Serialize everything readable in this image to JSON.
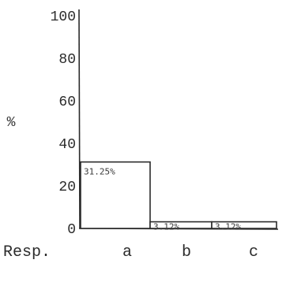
{
  "chart_data": {
    "type": "bar",
    "ylabel": "%",
    "xlabel": "Resp.",
    "ylim": [
      0,
      100
    ],
    "y_ticks": [
      "100",
      "80",
      "60",
      "40",
      "20",
      "0"
    ],
    "categories": [
      "a",
      "b",
      "c"
    ],
    "values": [
      31.25,
      3.12,
      3.12
    ],
    "data_labels": [
      "31.25%",
      "3.12%",
      "3.12%"
    ],
    "grid": false,
    "colors": {
      "ink": "#2b2b2b",
      "bar_fill": "#ffffff"
    }
  }
}
